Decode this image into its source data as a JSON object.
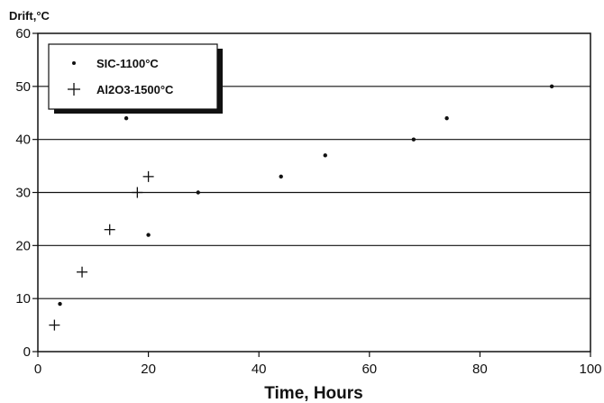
{
  "chart_data": {
    "type": "scatter",
    "title": "",
    "xlabel": "Time, Hours",
    "ylabel": "Drift,°C",
    "xlim": [
      0,
      100
    ],
    "ylim": [
      0,
      60
    ],
    "x_ticks": [
      "0",
      "20",
      "40",
      "60",
      "80",
      "100"
    ],
    "y_ticks": [
      "0",
      "10",
      "20",
      "30",
      "40",
      "50",
      "60"
    ],
    "grid": "horizontal",
    "legend_position": "top-left",
    "series": [
      {
        "name": "SIC-1100°C",
        "marker": "dot",
        "x": [
          4,
          16,
          20,
          29,
          44,
          52,
          68,
          74,
          93
        ],
        "y": [
          9,
          44,
          22,
          30,
          33,
          37,
          40,
          44,
          50
        ]
      },
      {
        "name": "Al2O3-1500°C",
        "marker": "plus",
        "x": [
          3,
          8,
          13,
          18,
          20
        ],
        "y": [
          5,
          15,
          23,
          30,
          33
        ]
      }
    ]
  }
}
